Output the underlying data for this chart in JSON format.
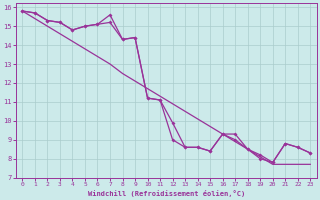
{
  "xlabel": "Windchill (Refroidissement éolien,°C)",
  "bg_color": "#cceaea",
  "grid_color": "#aacccc",
  "line_color": "#993399",
  "x_hours": [
    0,
    1,
    2,
    3,
    4,
    5,
    6,
    7,
    8,
    9,
    10,
    11,
    12,
    13,
    14,
    15,
    16,
    17,
    18,
    19,
    20,
    21,
    22,
    23
  ],
  "series_zigzag": [
    15.8,
    15.7,
    15.3,
    15.2,
    14.8,
    15.0,
    15.1,
    15.6,
    14.3,
    14.4,
    11.2,
    11.1,
    9.0,
    8.6,
    8.6,
    8.4,
    9.3,
    9.3,
    8.5,
    8.0,
    7.8,
    8.8,
    8.6,
    8.3
  ],
  "series_smooth": [
    15.8,
    15.7,
    15.3,
    15.2,
    14.8,
    15.0,
    15.1,
    15.2,
    14.3,
    14.4,
    11.2,
    11.1,
    9.9,
    8.6,
    8.6,
    8.4,
    9.3,
    9.0,
    8.5,
    8.2,
    7.8,
    8.8,
    8.6,
    8.3
  ],
  "series_linear": [
    15.8,
    15.4,
    15.0,
    14.6,
    14.2,
    13.8,
    13.4,
    13.0,
    12.5,
    12.1,
    11.7,
    11.3,
    10.9,
    10.5,
    10.1,
    9.7,
    9.3,
    8.9,
    8.5,
    8.1,
    7.7,
    7.7,
    7.7,
    7.7
  ],
  "ylim_min": 7,
  "ylim_max": 16,
  "xlim_min": -0.5,
  "xlim_max": 23.5,
  "yticks": [
    7,
    8,
    9,
    10,
    11,
    12,
    13,
    14,
    15,
    16
  ],
  "xticks": [
    0,
    1,
    2,
    3,
    4,
    5,
    6,
    7,
    8,
    9,
    10,
    11,
    12,
    13,
    14,
    15,
    16,
    17,
    18,
    19,
    20,
    21,
    22,
    23
  ]
}
